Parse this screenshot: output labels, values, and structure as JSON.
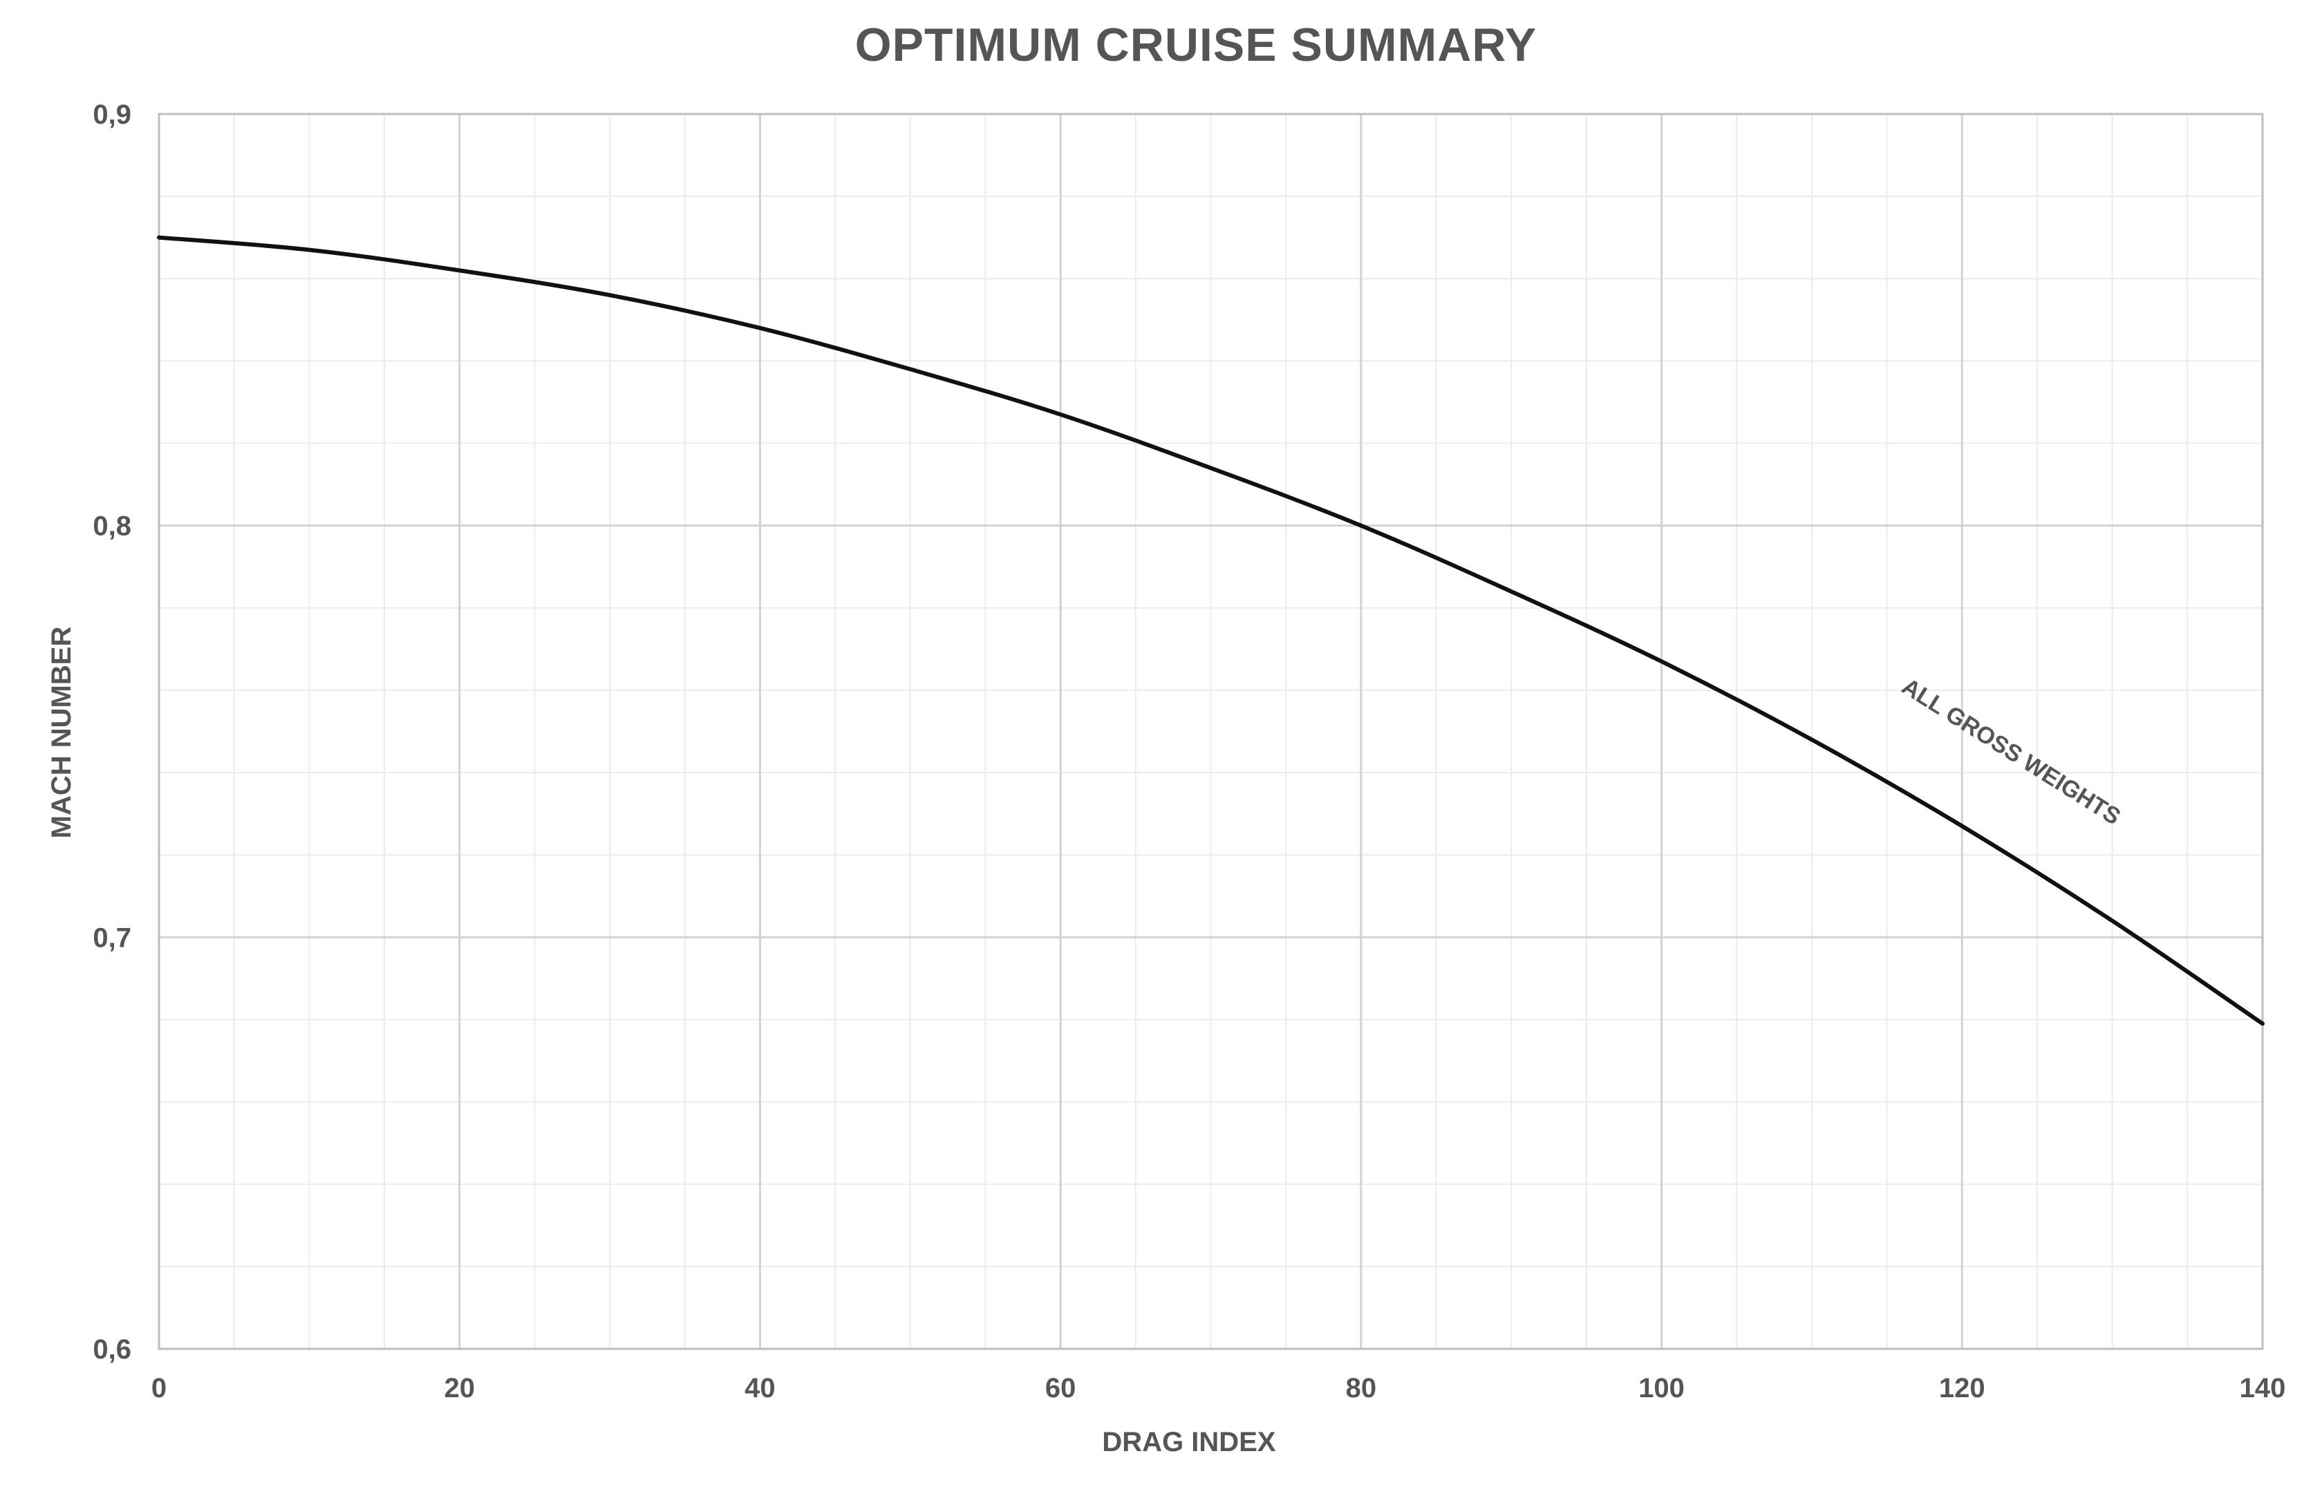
{
  "chart_data": {
    "type": "line",
    "title": "OPTIMUM CRUISE SUMMARY",
    "xlabel": "DRAG INDEX",
    "ylabel": "MACH NUMBER",
    "xlim": [
      0,
      140
    ],
    "ylim": [
      0.6,
      0.9
    ],
    "x_ticks": [
      0,
      20,
      40,
      60,
      80,
      100,
      120,
      140
    ],
    "x_tick_labels": [
      "0",
      "20",
      "40",
      "60",
      "80",
      "100",
      "120",
      "140"
    ],
    "y_ticks": [
      0.6,
      0.7,
      0.8,
      0.9
    ],
    "y_tick_labels": [
      "0,6",
      "0,7",
      "0,8",
      "0,9"
    ],
    "x_minor_step": 5,
    "y_minor_step": 0.02,
    "grid": true,
    "colors": {
      "line": "#111111",
      "major_grid": "#d2d2d2",
      "minor_grid": "#ececec",
      "text": "#555555"
    },
    "series": [
      {
        "x": [
          0,
          10,
          20,
          30,
          40,
          50,
          60,
          70,
          80,
          90,
          100,
          110,
          120,
          130,
          140
        ],
        "values": [
          0.87,
          0.867,
          0.862,
          0.856,
          0.848,
          0.838,
          0.827,
          0.814,
          0.8,
          0.784,
          0.767,
          0.748,
          0.727,
          0.704,
          0.679
        ]
      }
    ],
    "annotations": [
      {
        "text": "ALL GROSS WEIGHTS",
        "x": 123,
        "y": 0.7435
      }
    ]
  }
}
